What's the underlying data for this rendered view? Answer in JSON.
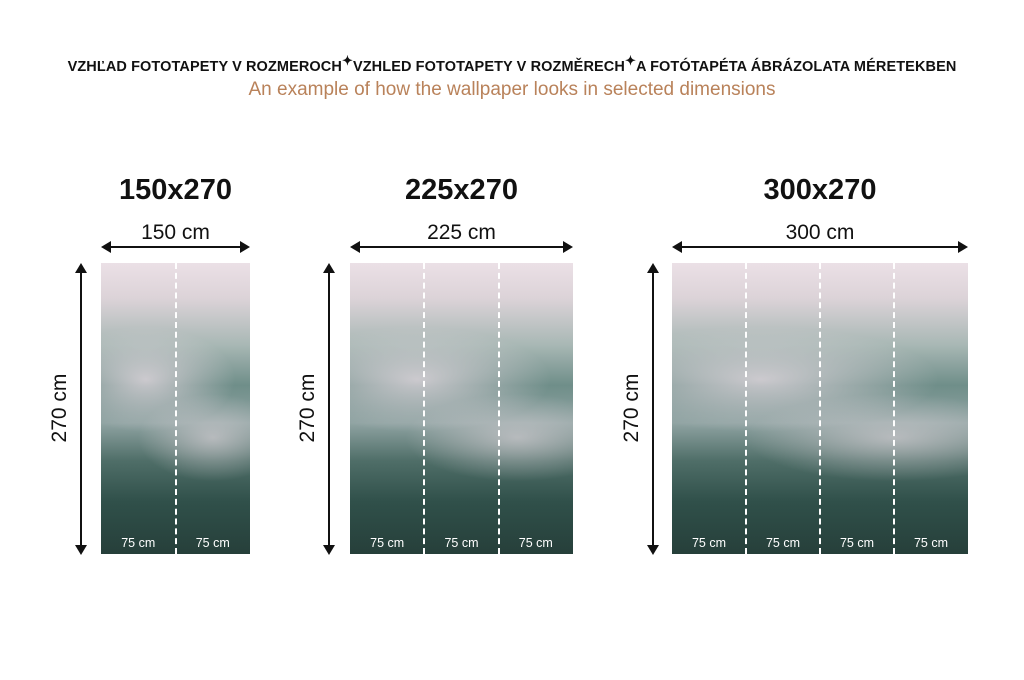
{
  "header": {
    "languages": [
      "VZHĽAD FOTOTAPETY V ROZMEROCH",
      "VZHLED FOTOTAPETY V ROZMĚRECH",
      "A FOTÓTAPÉTA ÁBRÁZOLATA MÉRETEKBEN"
    ],
    "separator_icon": "sparkle-icon",
    "subtitle": "An example of how the wallpaper looks in selected dimensions",
    "subtitle_color": "#b9825a"
  },
  "variants": [
    {
      "title": "150x270",
      "width_label": "150 cm",
      "height_label": "270 cm",
      "segments": [
        "75 cm",
        "75 cm"
      ]
    },
    {
      "title": "225x270",
      "width_label": "225 cm",
      "height_label": "270 cm",
      "segments": [
        "75 cm",
        "75 cm",
        "75 cm"
      ]
    },
    {
      "title": "300x270",
      "width_label": "300 cm",
      "height_label": "270 cm",
      "segments": [
        "75 cm",
        "75 cm",
        "75 cm",
        "75 cm"
      ]
    }
  ]
}
